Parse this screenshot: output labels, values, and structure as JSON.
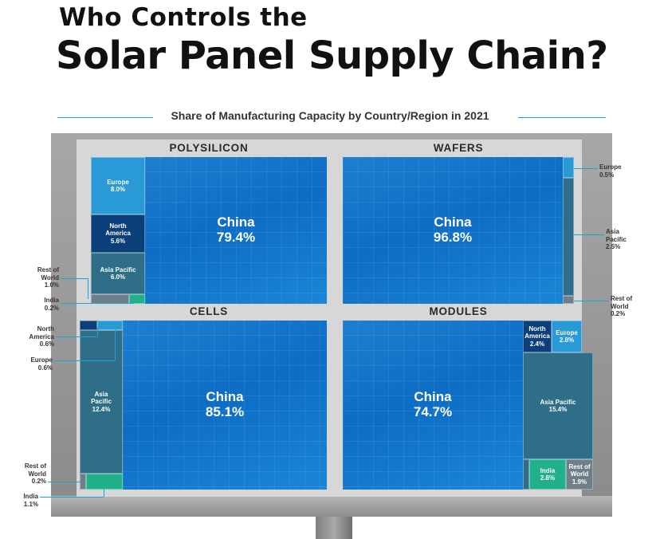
{
  "header": {
    "title_line1": "Who Controls the",
    "title_line2": "Solar Panel Supply Chain?",
    "subtitle": "Share of Manufacturing Capacity by Country/Region in 2021"
  },
  "colors": {
    "china": "#0d6cc4",
    "europe": "#2a9ad6",
    "north_america": "#0b3f7a",
    "asia_pacific": "#2e6e88",
    "rest_of_world": "#6f7f8a",
    "india": "#20b08c",
    "accent_line": "#1aa3d8"
  },
  "chart_data": [
    {
      "type": "treemap",
      "title": "POLYSILICON",
      "segments": [
        {
          "name": "China",
          "value": 79.4,
          "label": "China",
          "value_label": "79.4%"
        },
        {
          "name": "Europe",
          "value": 8.0,
          "label": "Europe",
          "value_label": "8.0%"
        },
        {
          "name": "North America",
          "value": 5.6,
          "label": "North America",
          "value_label": "5.6%"
        },
        {
          "name": "Asia Pacific",
          "value": 6.0,
          "label": "Asia Pacific",
          "value_label": "6.0%"
        },
        {
          "name": "Rest of World",
          "value": 1.0,
          "label": "Rest of World",
          "value_label": "1.0%"
        },
        {
          "name": "India",
          "value": 0.2,
          "label": "India",
          "value_label": "0.2%"
        }
      ]
    },
    {
      "type": "treemap",
      "title": "WAFERS",
      "segments": [
        {
          "name": "China",
          "value": 96.8,
          "label": "China",
          "value_label": "96.8%"
        },
        {
          "name": "Europe",
          "value": 0.5,
          "label": "Europe",
          "value_label": "0.5%"
        },
        {
          "name": "Asia Pacific",
          "value": 2.5,
          "label": "Asia Pacific",
          "value_label": "2.5%"
        },
        {
          "name": "Rest of World",
          "value": 0.2,
          "label": "Rest of World",
          "value_label": "0.2%"
        }
      ]
    },
    {
      "type": "treemap",
      "title": "CELLS",
      "segments": [
        {
          "name": "China",
          "value": 85.1,
          "label": "China",
          "value_label": "85.1%"
        },
        {
          "name": "North America",
          "value": 0.6,
          "label": "North America",
          "value_label": "0.6%"
        },
        {
          "name": "Europe",
          "value": 0.6,
          "label": "Europe",
          "value_label": "0.6%"
        },
        {
          "name": "Asia Pacific",
          "value": 12.4,
          "label": "Asia Pacific",
          "value_label": "12.4%"
        },
        {
          "name": "Rest of World",
          "value": 0.2,
          "label": "Rest of World",
          "value_label": "0.2%"
        },
        {
          "name": "India",
          "value": 1.1,
          "label": "India",
          "value_label": "1.1%"
        }
      ]
    },
    {
      "type": "treemap",
      "title": "MODULES",
      "segments": [
        {
          "name": "China",
          "value": 74.7,
          "label": "China",
          "value_label": "74.7%"
        },
        {
          "name": "North America",
          "value": 2.4,
          "label": "North America",
          "value_label": "2.4%"
        },
        {
          "name": "Europe",
          "value": 2.8,
          "label": "Europe",
          "value_label": "2.8%"
        },
        {
          "name": "Asia Pacific",
          "value": 15.4,
          "label": "Asia Pacific",
          "value_label": "15.4%"
        },
        {
          "name": "India",
          "value": 2.8,
          "label": "India",
          "value_label": "2.8%"
        },
        {
          "name": "Rest of World",
          "value": 1.9,
          "label": "Rest of World",
          "value_label": "1.9%"
        }
      ]
    }
  ]
}
